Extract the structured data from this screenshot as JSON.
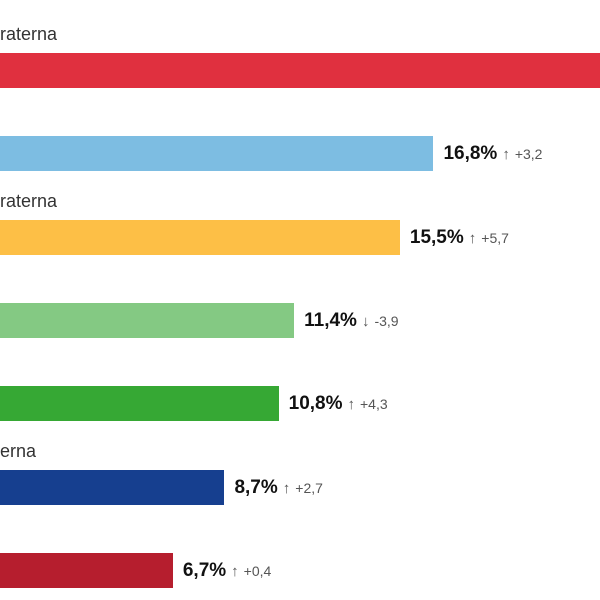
{
  "chart_data": {
    "type": "bar",
    "orientation": "horizontal",
    "unit": "%",
    "categories": [
      "raterna",
      "",
      "raterna",
      "",
      "",
      "erna",
      ""
    ],
    "values": [
      null,
      16.8,
      15.5,
      11.4,
      10.8,
      8.7,
      6.7
    ],
    "value_labels": [
      "",
      "16,8%",
      "15,5%",
      "11,4%",
      "10,8%",
      "8,7%",
      "6,7%"
    ],
    "changes": [
      "",
      "+3,2",
      "+5,7",
      "-3,9",
      "+4,3",
      "+2,7",
      "+0,4"
    ],
    "change_direction": [
      "",
      "up",
      "up",
      "down",
      "up",
      "up",
      "up"
    ],
    "colors": [
      "#e0303f",
      "#7dbde2",
      "#fdbf46",
      "#84c983",
      "#36a834",
      "#163f8f",
      "#b61e2e"
    ],
    "xlim": [
      0,
      23.2
    ]
  },
  "arrows": {
    "up": "↑",
    "down": "↓"
  }
}
